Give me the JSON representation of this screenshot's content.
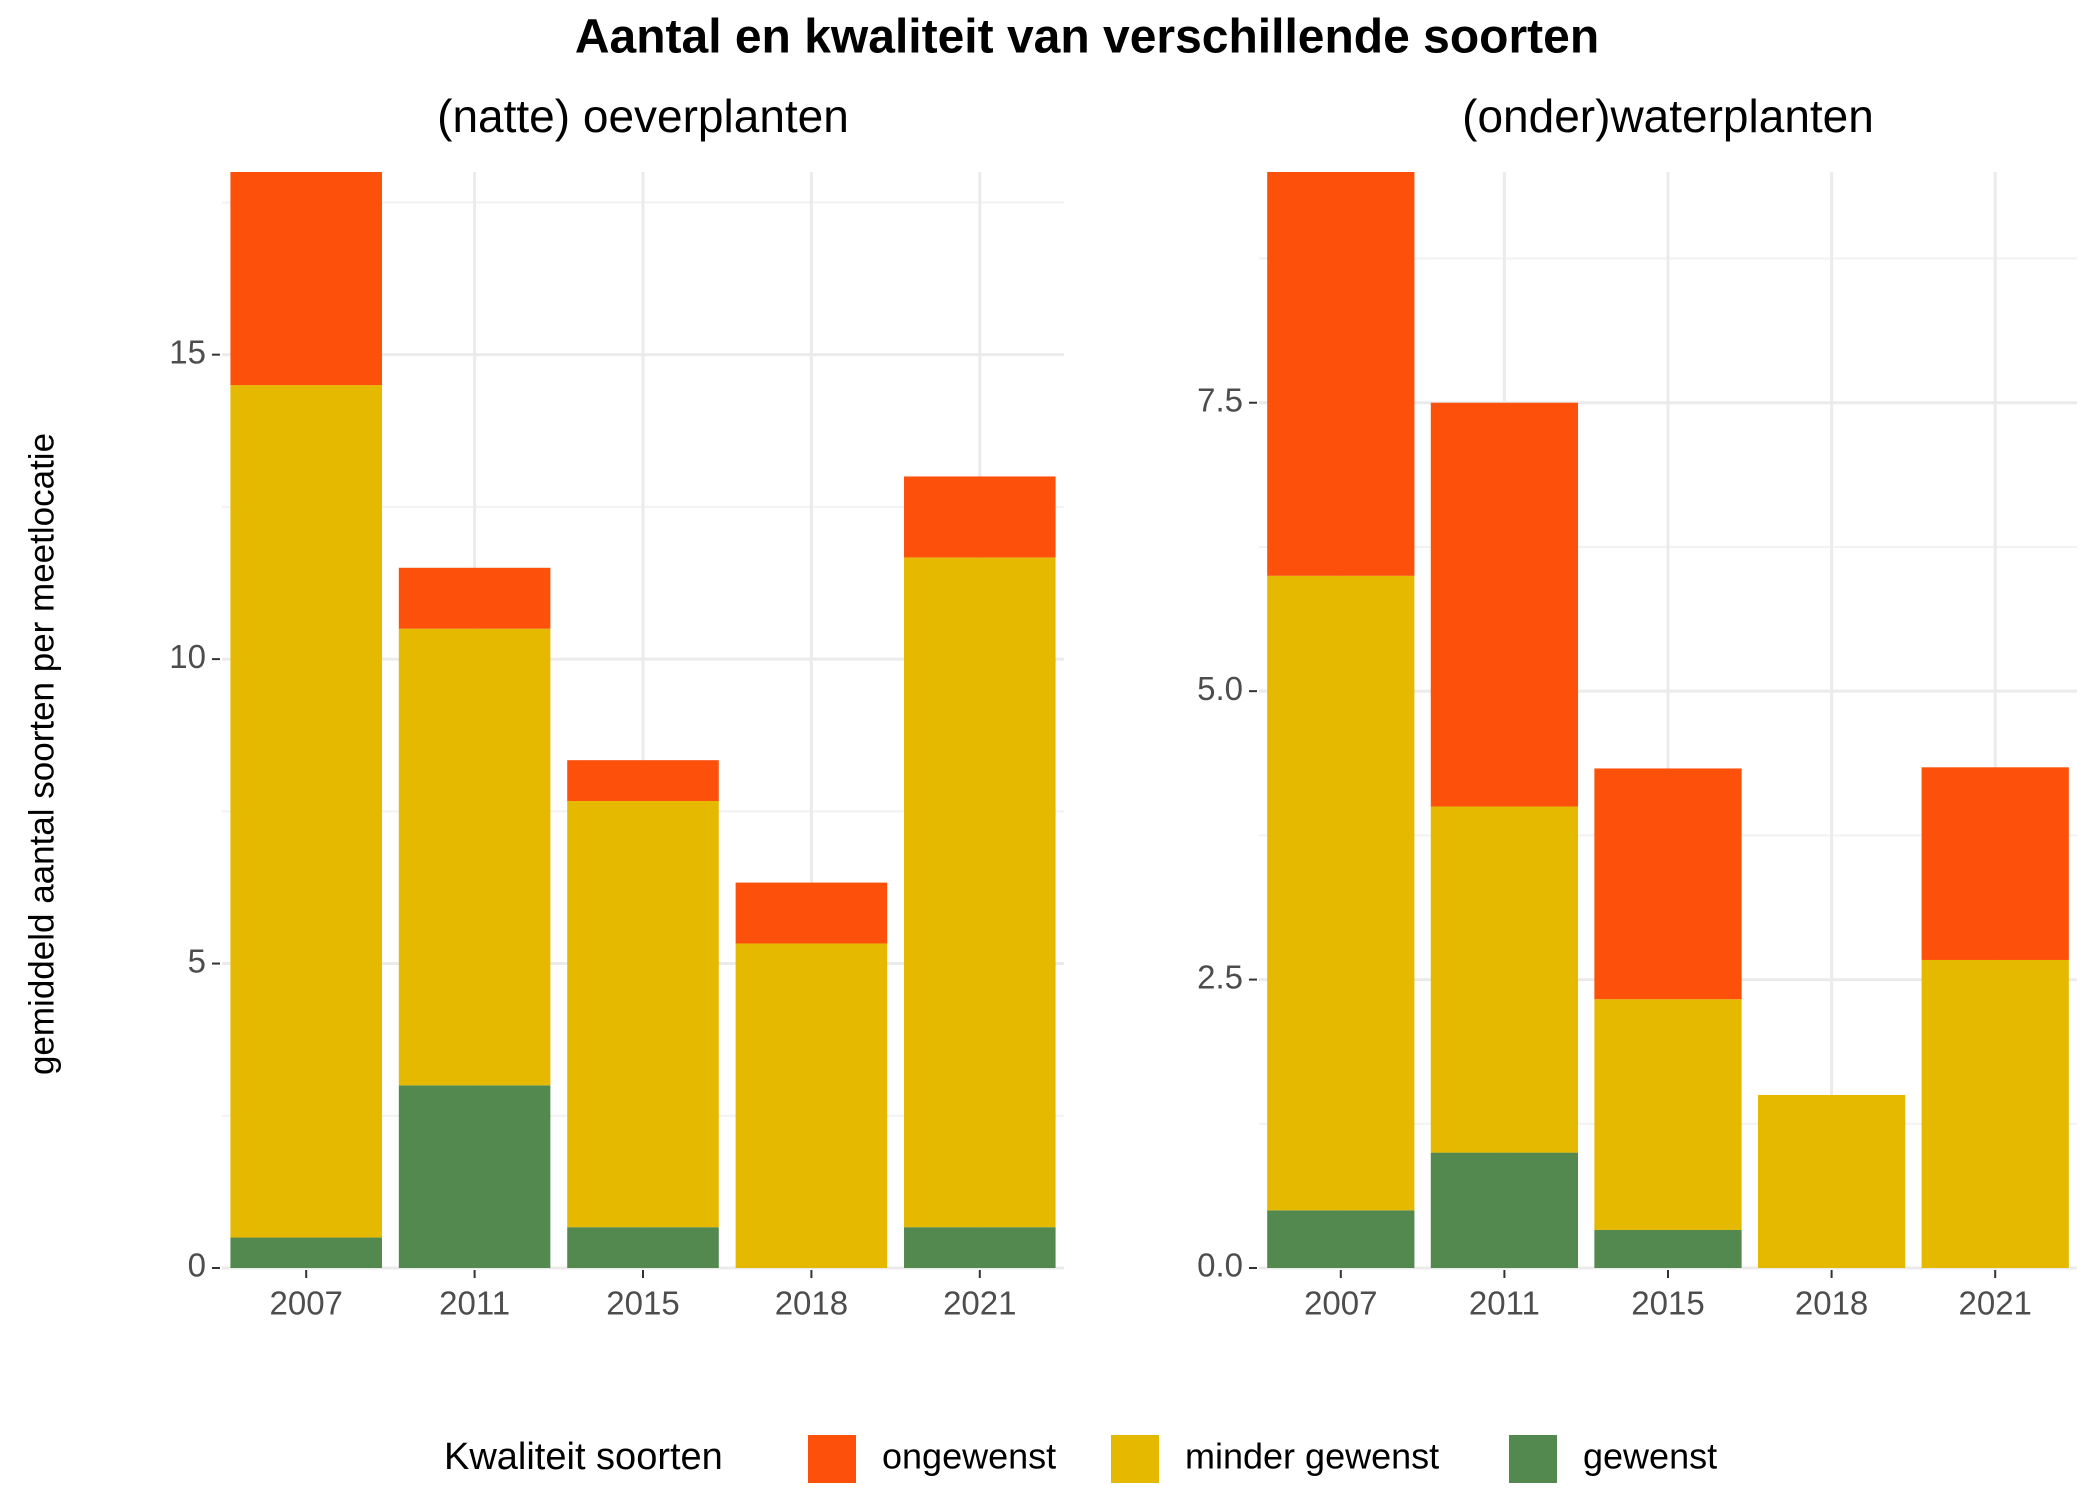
{
  "title": "Aantal en kwaliteit van verschillende soorten",
  "y_label": "gemiddeld aantal soorten per meetlocatie",
  "legend_title": "Kwaliteit soorten",
  "chart_data": [
    {
      "type": "bar",
      "stacked": true,
      "subtitle": "(natte) oeverplanten",
      "categories": [
        "2007",
        "2011",
        "2015",
        "2018",
        "2021"
      ],
      "series": [
        {
          "name": "ongewenst",
          "color": "#fc500b",
          "values": [
            3.5,
            1.0,
            0.67,
            1.0,
            1.33
          ]
        },
        {
          "name": "minder gewenst",
          "color": "#e4b900",
          "values": [
            14.0,
            7.5,
            7.0,
            5.33,
            11.0
          ]
        },
        {
          "name": "gewenst",
          "color": "#53884e",
          "values": [
            0.5,
            3.0,
            0.67,
            0,
            0.67
          ]
        }
      ],
      "ylim": [
        0,
        18
      ],
      "yticks": [
        0,
        5,
        10,
        15
      ],
      "grid": true
    },
    {
      "type": "bar",
      "stacked": true,
      "subtitle": "(onder)waterplanten",
      "categories": [
        "2007",
        "2011",
        "2015",
        "2018",
        "2021"
      ],
      "series": [
        {
          "name": "ongewenst",
          "color": "#fc500b",
          "values": [
            3.5,
            3.5,
            2.0,
            0,
            1.67
          ]
        },
        {
          "name": "minder gewenst",
          "color": "#e4b900",
          "values": [
            5.5,
            3.0,
            2.0,
            1.5,
            2.67
          ]
        },
        {
          "name": "gewenst",
          "color": "#53884e",
          "values": [
            0.5,
            1.0,
            0.33,
            0,
            0
          ]
        }
      ],
      "ylim": [
        0,
        9.5
      ],
      "yticks": [
        {
          "value": 0,
          "label": "0.0"
        },
        2.5,
        {
          "value": 5,
          "label": "5.0"
        },
        7.5
      ],
      "grid": true
    }
  ]
}
